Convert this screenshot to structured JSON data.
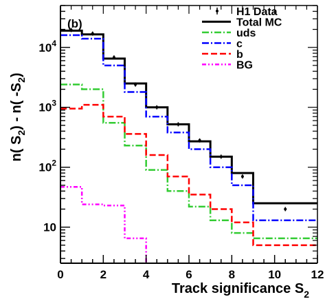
{
  "chart_data": {
    "type": "line",
    "panel_label": "(b)",
    "title": "",
    "xlabel": "Track significance S",
    "xlabel_sub": "2",
    "ylabel": {
      "parts": [
        "n( S",
        "2",
        ") - n( -S",
        "2",
        ")"
      ]
    },
    "x_scale": "linear",
    "y_scale": "log",
    "xlim": [
      0,
      12
    ],
    "ylim": [
      2.5,
      50000
    ],
    "x_ticks": [
      0,
      2,
      4,
      6,
      8,
      10,
      12
    ],
    "x_ticklabels": [
      "0",
      "2",
      "4",
      "6",
      "8",
      "10",
      "12"
    ],
    "y_ticks": [
      {
        "value": 10,
        "base": "10",
        "exp": ""
      },
      {
        "value": 100,
        "base": "10",
        "exp": "2"
      },
      {
        "value": 1000,
        "base": "10",
        "exp": "3"
      },
      {
        "value": 10000,
        "base": "10",
        "exp": "4"
      }
    ],
    "bin_edges": [
      0,
      1,
      2,
      3,
      4,
      5,
      6,
      7,
      8,
      9,
      12
    ],
    "series": [
      {
        "name": "Total MC",
        "style": "solid",
        "color": "#000000",
        "values": [
          19000,
          16500,
          6500,
          2500,
          1000,
          520,
          270,
          150,
          80,
          25
        ]
      },
      {
        "name": "uds",
        "style": "dashdot",
        "color": "#33cc33",
        "values": [
          2400,
          2000,
          550,
          230,
          90,
          40,
          22,
          13,
          8,
          6.5
        ]
      },
      {
        "name": "c",
        "style": "dashdot",
        "color": "#0000ff",
        "values": [
          16000,
          14000,
          5000,
          1800,
          700,
          380,
          200,
          100,
          50,
          13
        ]
      },
      {
        "name": "b",
        "style": "dashed",
        "color": "#ff0000",
        "values": [
          950,
          1100,
          700,
          360,
          160,
          70,
          35,
          20,
          12,
          5
        ]
      },
      {
        "name": "BG",
        "style": "dashdotdot",
        "color": "#ff00ff",
        "values": [
          47,
          24,
          23,
          6.5,
          2,
          null,
          null,
          null,
          null,
          null
        ]
      }
    ],
    "data_points": {
      "name": "H1 Data",
      "x": [
        0.5,
        1.5,
        2.5,
        3.5,
        4.5,
        5.5,
        6.5,
        7.5,
        8.5,
        10.5
      ],
      "y": [
        19500,
        17000,
        6800,
        2400,
        1000,
        520,
        280,
        150,
        70,
        20
      ]
    },
    "legend": {
      "placement": "top-right",
      "entries": [
        {
          "label": "H1 Data",
          "kind": "marker",
          "color": "#000000"
        },
        {
          "label": "Total MC",
          "kind": "line",
          "style": "solid",
          "color": "#000000"
        },
        {
          "label": "uds",
          "kind": "line",
          "style": "dashdot",
          "color": "#33cc33"
        },
        {
          "label": "c",
          "kind": "line",
          "style": "dashdot",
          "color": "#0000ff"
        },
        {
          "label": "b",
          "kind": "line",
          "style": "dashed",
          "color": "#ff0000"
        },
        {
          "label": "BG",
          "kind": "line",
          "style": "dashdotdot",
          "color": "#ff00ff"
        }
      ]
    },
    "grid": false
  }
}
